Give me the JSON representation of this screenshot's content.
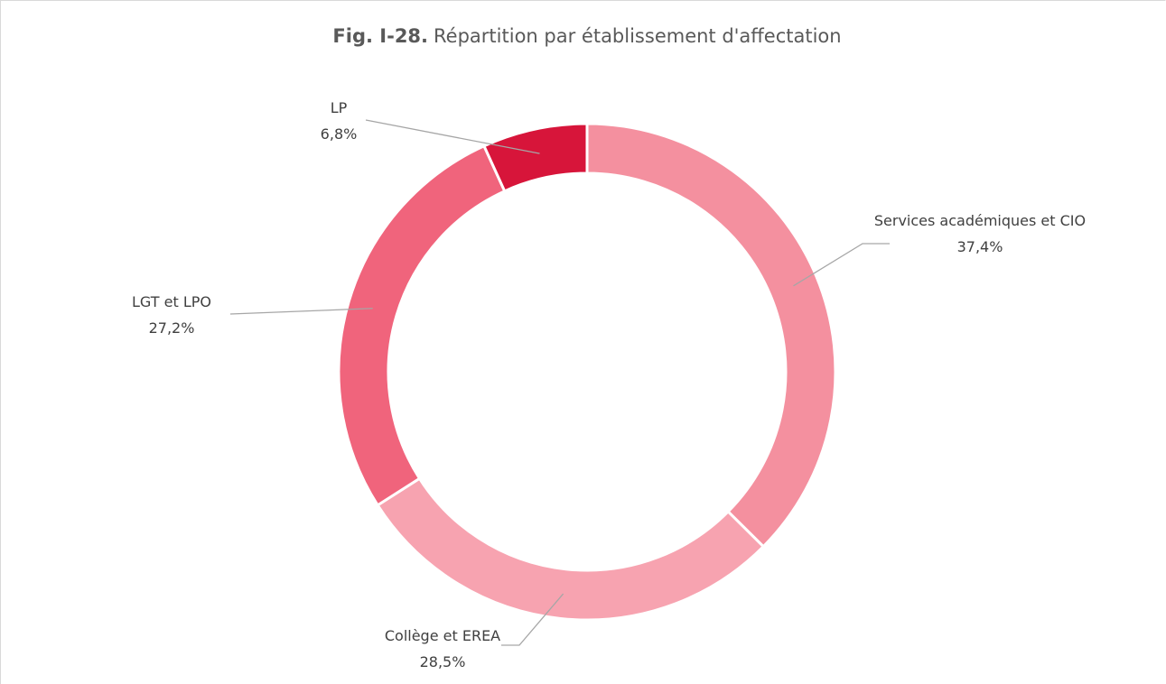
{
  "chart_data": {
    "type": "donut",
    "title": [
      "Fig. I-28.",
      "Répartition par établissement d'affectation"
    ],
    "categories": [
      "Services académiques et CIO",
      "Collège et EREA",
      "LGT et LPO",
      "LP"
    ],
    "values": [
      37.4,
      28.5,
      27.2,
      6.8
    ],
    "value_labels": [
      "37,4%",
      "28,5%",
      "27,2%",
      "6,8%"
    ],
    "colors": [
      "#f4909f",
      "#f7a3b0",
      "#f0647c",
      "#d7153a"
    ]
  }
}
